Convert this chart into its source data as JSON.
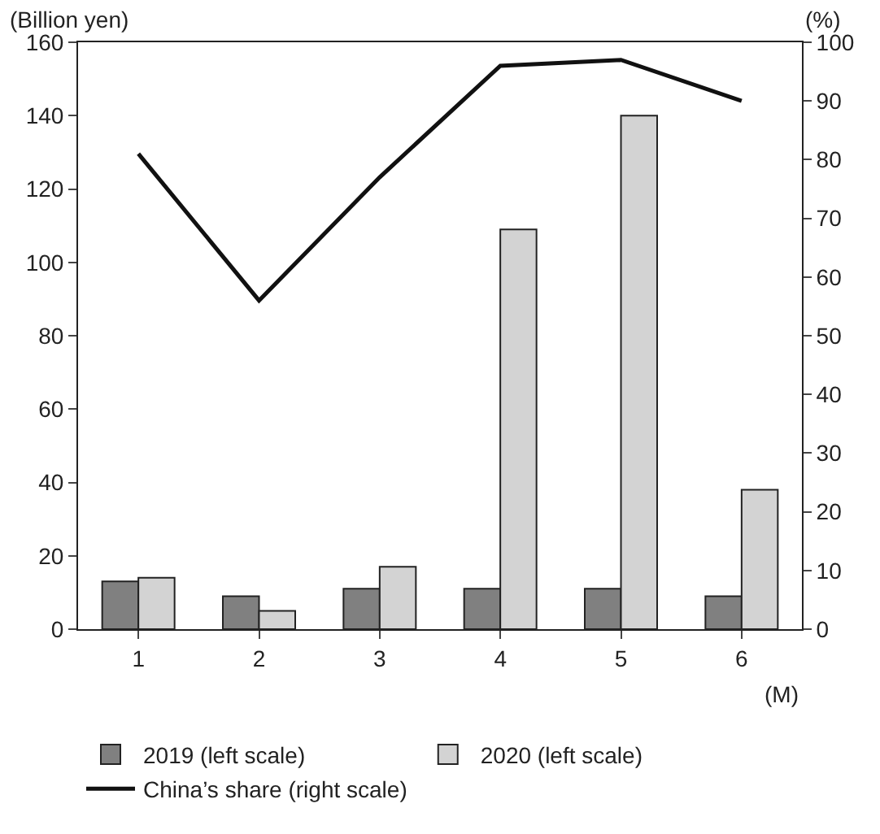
{
  "chart_data": {
    "type": "bar",
    "categories": [
      "1",
      "2",
      "3",
      "4",
      "5",
      "6"
    ],
    "xlabel": "(M)",
    "ylabel": "(Billion yen)",
    "y2label": "(%)",
    "series": [
      {
        "name": "2019 (left scale)",
        "color": "#808080",
        "values": [
          13,
          9,
          11,
          11,
          11,
          9
        ]
      },
      {
        "name": "2020 (left scale)",
        "color": "#d3d3d3",
        "values": [
          14,
          5,
          17,
          109,
          140,
          38
        ]
      },
      {
        "name": "China’s share (right scale)",
        "type": "line",
        "axis": "y2",
        "color": "#111111",
        "values": [
          81,
          56,
          77,
          96,
          97,
          90
        ]
      }
    ],
    "ylim": [
      0,
      160
    ],
    "yticks": [
      0,
      20,
      40,
      60,
      80,
      100,
      120,
      140,
      160
    ],
    "y2lim": [
      0,
      100
    ],
    "y2ticks": [
      0,
      10,
      20,
      30,
      40,
      50,
      60,
      70,
      80,
      90,
      100
    ],
    "legend": "bottom",
    "marker": "none",
    "line_style": "solid"
  }
}
